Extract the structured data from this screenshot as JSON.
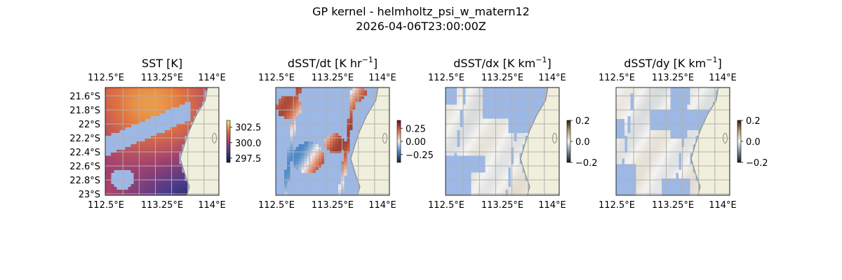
{
  "figure": {
    "title_line1": "GP kernel - helmholtz_psi_w_matern12",
    "title_line2": "2026-04-06T23:00:00Z"
  },
  "colors": {
    "ocean_mask": "#9db8e4",
    "land": "#efefdb",
    "coast": "#8c8c8c",
    "grid": "#b0b0b0"
  },
  "chart_data": [
    {
      "type": "heatmap",
      "title": "SST [K]",
      "colormap": "thermal",
      "xticks": [
        "112.5°E",
        "113.25°E",
        "114°E"
      ],
      "yticks": [
        "21.6°S",
        "21.8°S",
        "22°S",
        "22.2°S",
        "22.4°S",
        "22.6°S",
        "22.8°S",
        "23°S"
      ],
      "colorbar_ticks": [
        "302.5",
        "300.0",
        "297.5"
      ],
      "colorbar_values": [
        302.5,
        300.0,
        297.5
      ],
      "clim": [
        296.8,
        303.6
      ],
      "xlim_lon": [
        112.5,
        114.15
      ],
      "ylim_lat": [
        -23.05,
        -21.5
      ],
      "grid": true
    },
    {
      "type": "heatmap",
      "title": "dSST/dt [K hr",
      "title_sup": "−1",
      "title_end": "]",
      "colormap": "balance",
      "xticks": [
        "112.5°E",
        "113.25°E",
        "114°E"
      ],
      "yticks": [],
      "colorbar_ticks": [
        "0.25",
        "0.00",
        "−0.25"
      ],
      "colorbar_values": [
        0.25,
        0.0,
        -0.25
      ],
      "clim": [
        -0.4,
        0.4
      ],
      "xlim_lon": [
        112.5,
        114.15
      ],
      "ylim_lat": [
        -23.05,
        -21.5
      ],
      "grid": true
    },
    {
      "type": "heatmap",
      "title": "dSST/dx [K km",
      "title_sup": "−1",
      "title_end": "]",
      "colormap": "diff",
      "xticks": [
        "112.5°E",
        "113.25°E",
        "114°E"
      ],
      "yticks": [],
      "colorbar_ticks": [
        "0.2",
        "0.0",
        "−0.2"
      ],
      "colorbar_values": [
        0.2,
        0.0,
        -0.2
      ],
      "clim": [
        -0.2,
        0.2
      ],
      "xlim_lon": [
        112.5,
        114.15
      ],
      "ylim_lat": [
        -23.05,
        -21.5
      ],
      "grid": true
    },
    {
      "type": "heatmap",
      "title": "dSST/dy [K km",
      "title_sup": "−1",
      "title_end": "]",
      "colormap": "diff",
      "xticks": [
        "112.5°E",
        "113.25°E",
        "114°E"
      ],
      "yticks": [],
      "colorbar_ticks": [
        "0.2",
        "0.0",
        "−0.2"
      ],
      "colorbar_values": [
        0.2,
        0.0,
        -0.2
      ],
      "clim": [
        -0.2,
        0.2
      ],
      "xlim_lon": [
        112.5,
        114.15
      ],
      "ylim_lat": [
        -23.05,
        -21.5
      ],
      "grid": true
    }
  ]
}
